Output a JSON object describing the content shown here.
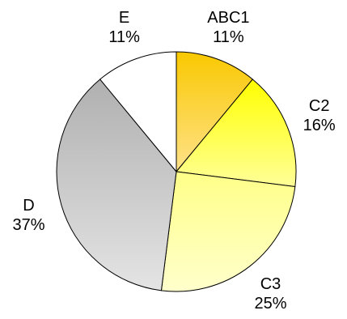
{
  "chart_data": {
    "type": "pie",
    "title": "",
    "start_angle_deg": 0,
    "direction": "clockwise",
    "slices": [
      {
        "name": "ABC1",
        "value": 11,
        "label": "11%",
        "color": "#F9C800",
        "color_light": "#FFE28A"
      },
      {
        "name": "C2",
        "value": 16,
        "label": "16%",
        "color": "#FFFF00",
        "color_light": "#FFFF99"
      },
      {
        "name": "C3",
        "value": 25,
        "label": "25%",
        "color": "#FFFF88",
        "color_light": "#FFFFCC"
      },
      {
        "name": "D",
        "value": 37,
        "label": "37%",
        "color": "#B0B0B0",
        "color_light": "#E4E4E4"
      },
      {
        "name": "E",
        "value": 11,
        "label": "11%",
        "color": "#FFFFFF",
        "color_light": "#FFFFFF"
      }
    ],
    "legend": "none",
    "data_labels": "outside"
  }
}
